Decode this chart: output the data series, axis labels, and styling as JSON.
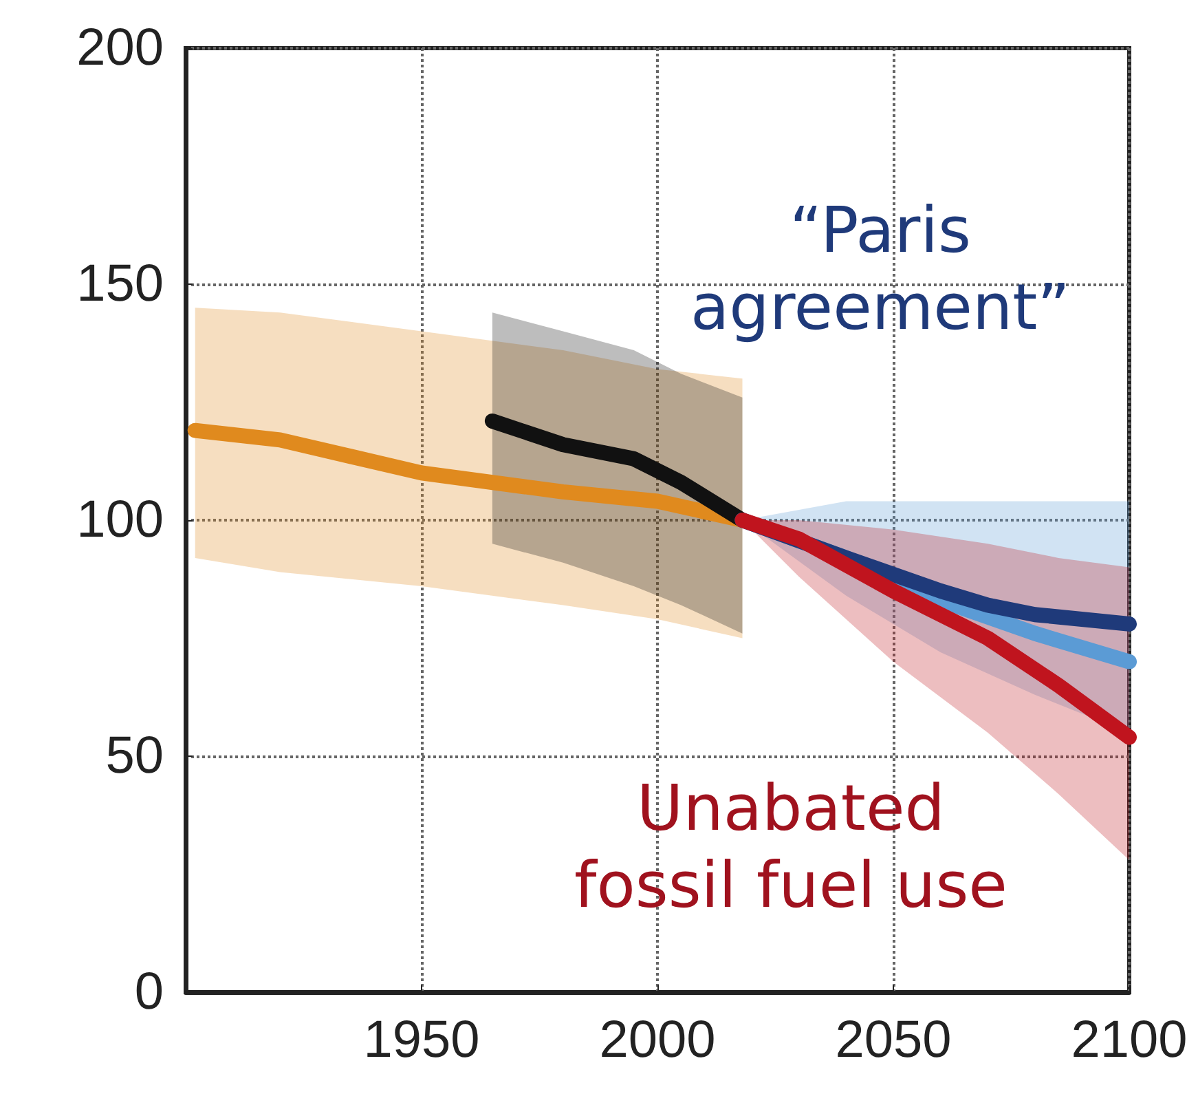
{
  "chart_data": {
    "type": "line",
    "xlim": [
      1900,
      2100
    ],
    "xticks": [
      1950,
      2000,
      2050,
      2100
    ],
    "ylim": [
      0,
      200
    ],
    "yticks": [
      0,
      50,
      100,
      150,
      200
    ],
    "grid": true,
    "annotations": [
      "“Paris\nagreement”",
      "Unabated\nfossil fuel use"
    ],
    "series": [
      {
        "color": "#e08a1e",
        "x": [
          1902,
          1920,
          1950,
          1980,
          2000,
          2018
        ],
        "values": [
          119,
          117,
          110,
          106,
          104,
          100
        ],
        "lower": [
          92,
          89,
          86,
          82,
          79,
          75
        ],
        "upper": [
          145,
          144,
          140,
          136,
          132,
          130
        ]
      },
      {
        "color": "#111111",
        "x": [
          1965,
          1980,
          1995,
          2005,
          2018
        ],
        "values": [
          121,
          116,
          113,
          108,
          100
        ],
        "lower": [
          95,
          91,
          86,
          82,
          76
        ],
        "upper": [
          144,
          140,
          136,
          131,
          126
        ]
      },
      {
        "color": "#5b9bd5",
        "x": [
          2018,
          2040,
          2060,
          2080,
          2100
        ],
        "values": [
          100,
          92,
          83,
          76,
          70
        ],
        "lower": [
          100,
          84,
          72,
          63,
          55
        ],
        "upper": [
          100,
          104,
          104,
          104,
          104
        ]
      },
      {
        "color": "#1f3a7a",
        "x": [
          2018,
          2040,
          2060,
          2070,
          2080,
          2100
        ],
        "values": [
          100,
          92,
          85,
          82,
          80,
          78
        ]
      },
      {
        "color": "#c0141e",
        "x": [
          2018,
          2030,
          2050,
          2070,
          2085,
          2100
        ],
        "values": [
          100,
          96,
          85,
          75,
          65,
          54
        ],
        "lower": [
          100,
          88,
          70,
          55,
          42,
          28
        ],
        "upper": [
          100,
          100,
          98,
          95,
          92,
          90
        ]
      }
    ]
  }
}
